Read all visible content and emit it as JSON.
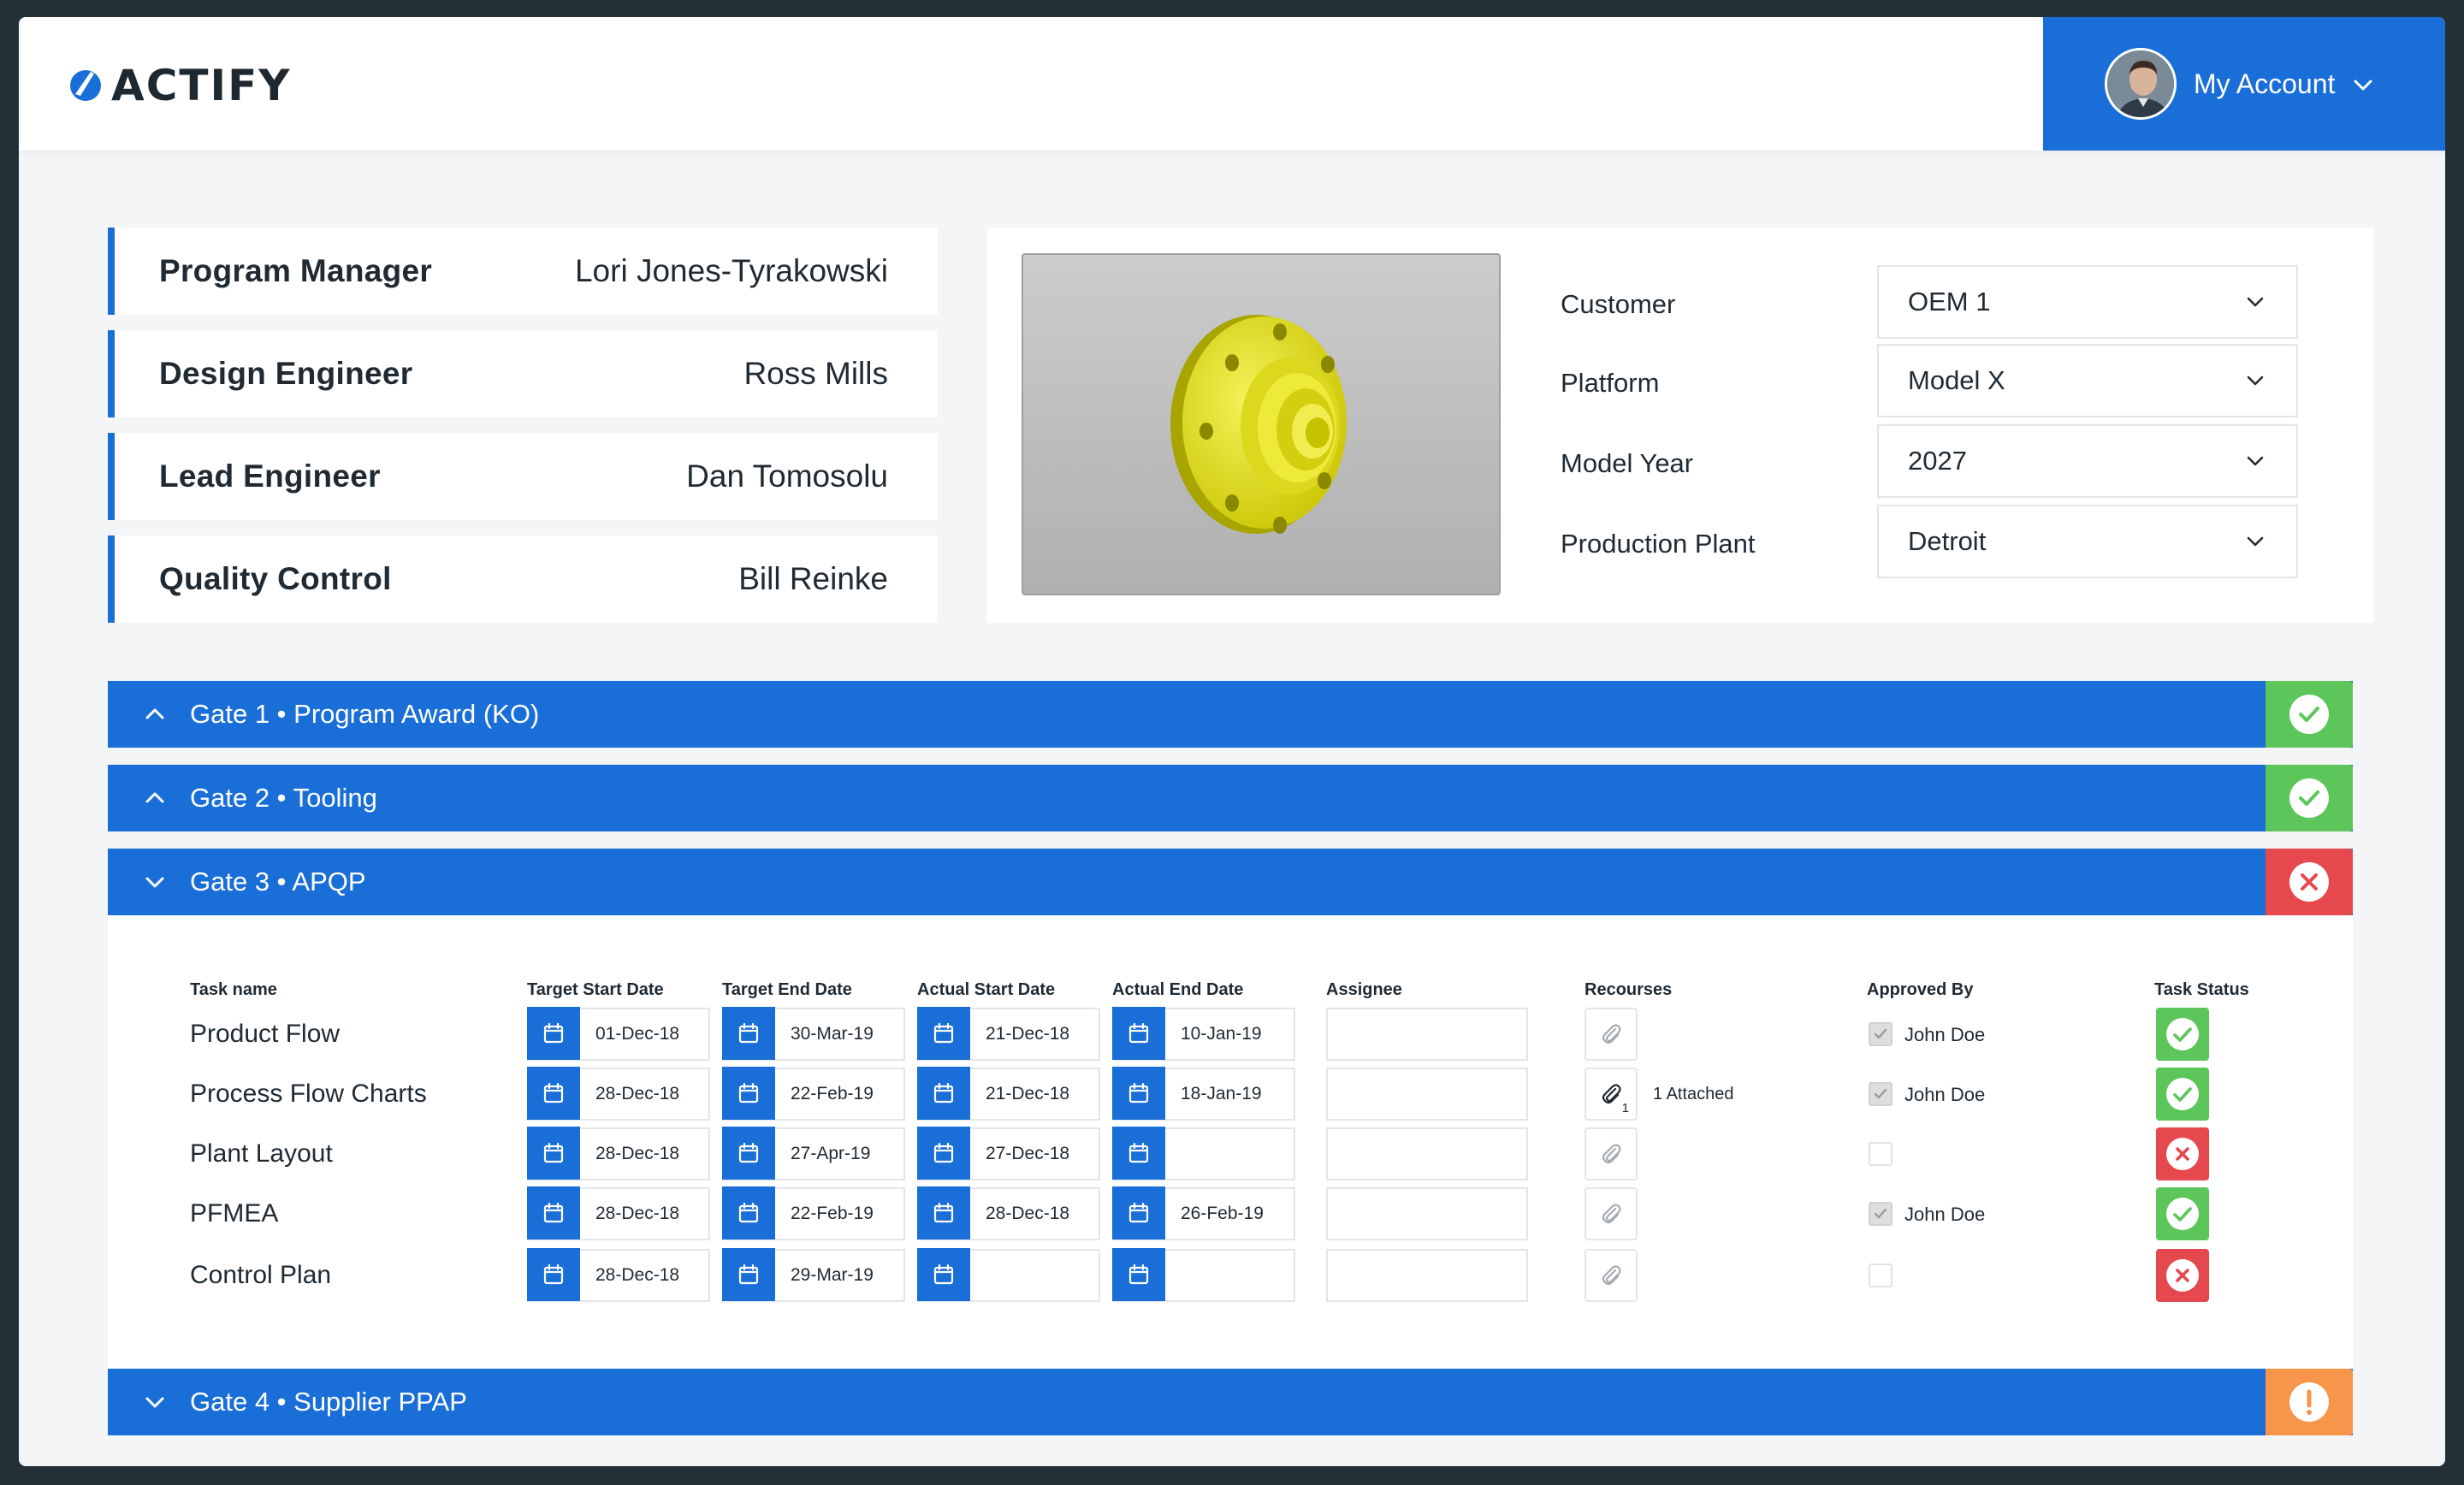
{
  "app": {
    "name": "ACTIFY"
  },
  "account": {
    "label": "My Account"
  },
  "people": [
    {
      "role": "Program Manager",
      "name": "Lori Jones-Tyrakowski"
    },
    {
      "role": "Design Engineer",
      "name": "Ross Mills"
    },
    {
      "role": "Lead Engineer",
      "name": "Dan Tomosolu"
    },
    {
      "role": "Quality Control",
      "name": "Bill Reinke"
    }
  ],
  "fields": [
    {
      "label": "Customer",
      "value": "OEM 1"
    },
    {
      "label": "Platform",
      "value": "Model X"
    },
    {
      "label": "Model Year",
      "value": "2027"
    },
    {
      "label": "Production Plant",
      "value": "Detroit"
    }
  ],
  "gates": [
    {
      "title": "Gate 1 • Program Award (KO)",
      "expanded": false,
      "status": "complete"
    },
    {
      "title": "Gate 2 • Tooling",
      "expanded": false,
      "status": "complete"
    },
    {
      "title": "Gate 3 • APQP",
      "expanded": true,
      "status": "failed"
    },
    {
      "title": "Gate 4 • Supplier PPAP",
      "expanded": false,
      "status": "warning"
    }
  ],
  "table": {
    "headers": {
      "task_name": "Task name",
      "target_start": "Target Start Date",
      "target_end": "Target End Date",
      "actual_start": "Actual Start Date",
      "actual_end": "Actual End Date",
      "assignee": "Assignee",
      "resources": "Recourses",
      "approved_by": "Approved By",
      "task_status": "Task Status"
    },
    "rows": [
      {
        "name": "Product Flow",
        "target_start": "01-Dec-18",
        "target_end": "30-Mar-19",
        "actual_start": "21-Dec-18",
        "actual_end": "10-Jan-19",
        "assignee": "",
        "attachments": "",
        "attachment_text": "",
        "approved": true,
        "approver": "John Doe",
        "status": "complete"
      },
      {
        "name": "Process Flow Charts",
        "target_start": "28-Dec-18",
        "target_end": "22-Feb-19",
        "actual_start": "21-Dec-18",
        "actual_end": "18-Jan-19",
        "assignee": "",
        "attachments": "1",
        "attachment_text": "1 Attached",
        "approved": true,
        "approver": "John Doe",
        "status": "complete"
      },
      {
        "name": "Plant Layout",
        "target_start": "28-Dec-18",
        "target_end": "27-Apr-19",
        "actual_start": "27-Dec-18",
        "actual_end": "",
        "assignee": "",
        "attachments": "",
        "attachment_text": "",
        "approved": false,
        "approver": "",
        "status": "failed"
      },
      {
        "name": "PFMEA",
        "target_start": "28-Dec-18",
        "target_end": "22-Feb-19",
        "actual_start": "28-Dec-18",
        "actual_end": "26-Feb-19",
        "assignee": "",
        "attachments": "",
        "attachment_text": "",
        "approved": true,
        "approver": "John Doe",
        "status": "complete"
      },
      {
        "name": "Control Plan",
        "target_start": "28-Dec-18",
        "target_end": "29-Mar-19",
        "actual_start": "",
        "actual_end": "",
        "assignee": "",
        "attachments": "",
        "attachment_text": "",
        "approved": false,
        "approver": "",
        "status": "failed"
      }
    ]
  },
  "colors": {
    "accent": "#1a6ed8",
    "complete": "#5cc65a",
    "failed": "#e5484d",
    "warning": "#f7954b"
  },
  "icons": {
    "complete": "check-circle-icon",
    "failed": "x-circle-icon",
    "warning": "exclamation-circle-icon",
    "calendar": "calendar-icon",
    "attachment": "paperclip-icon"
  }
}
